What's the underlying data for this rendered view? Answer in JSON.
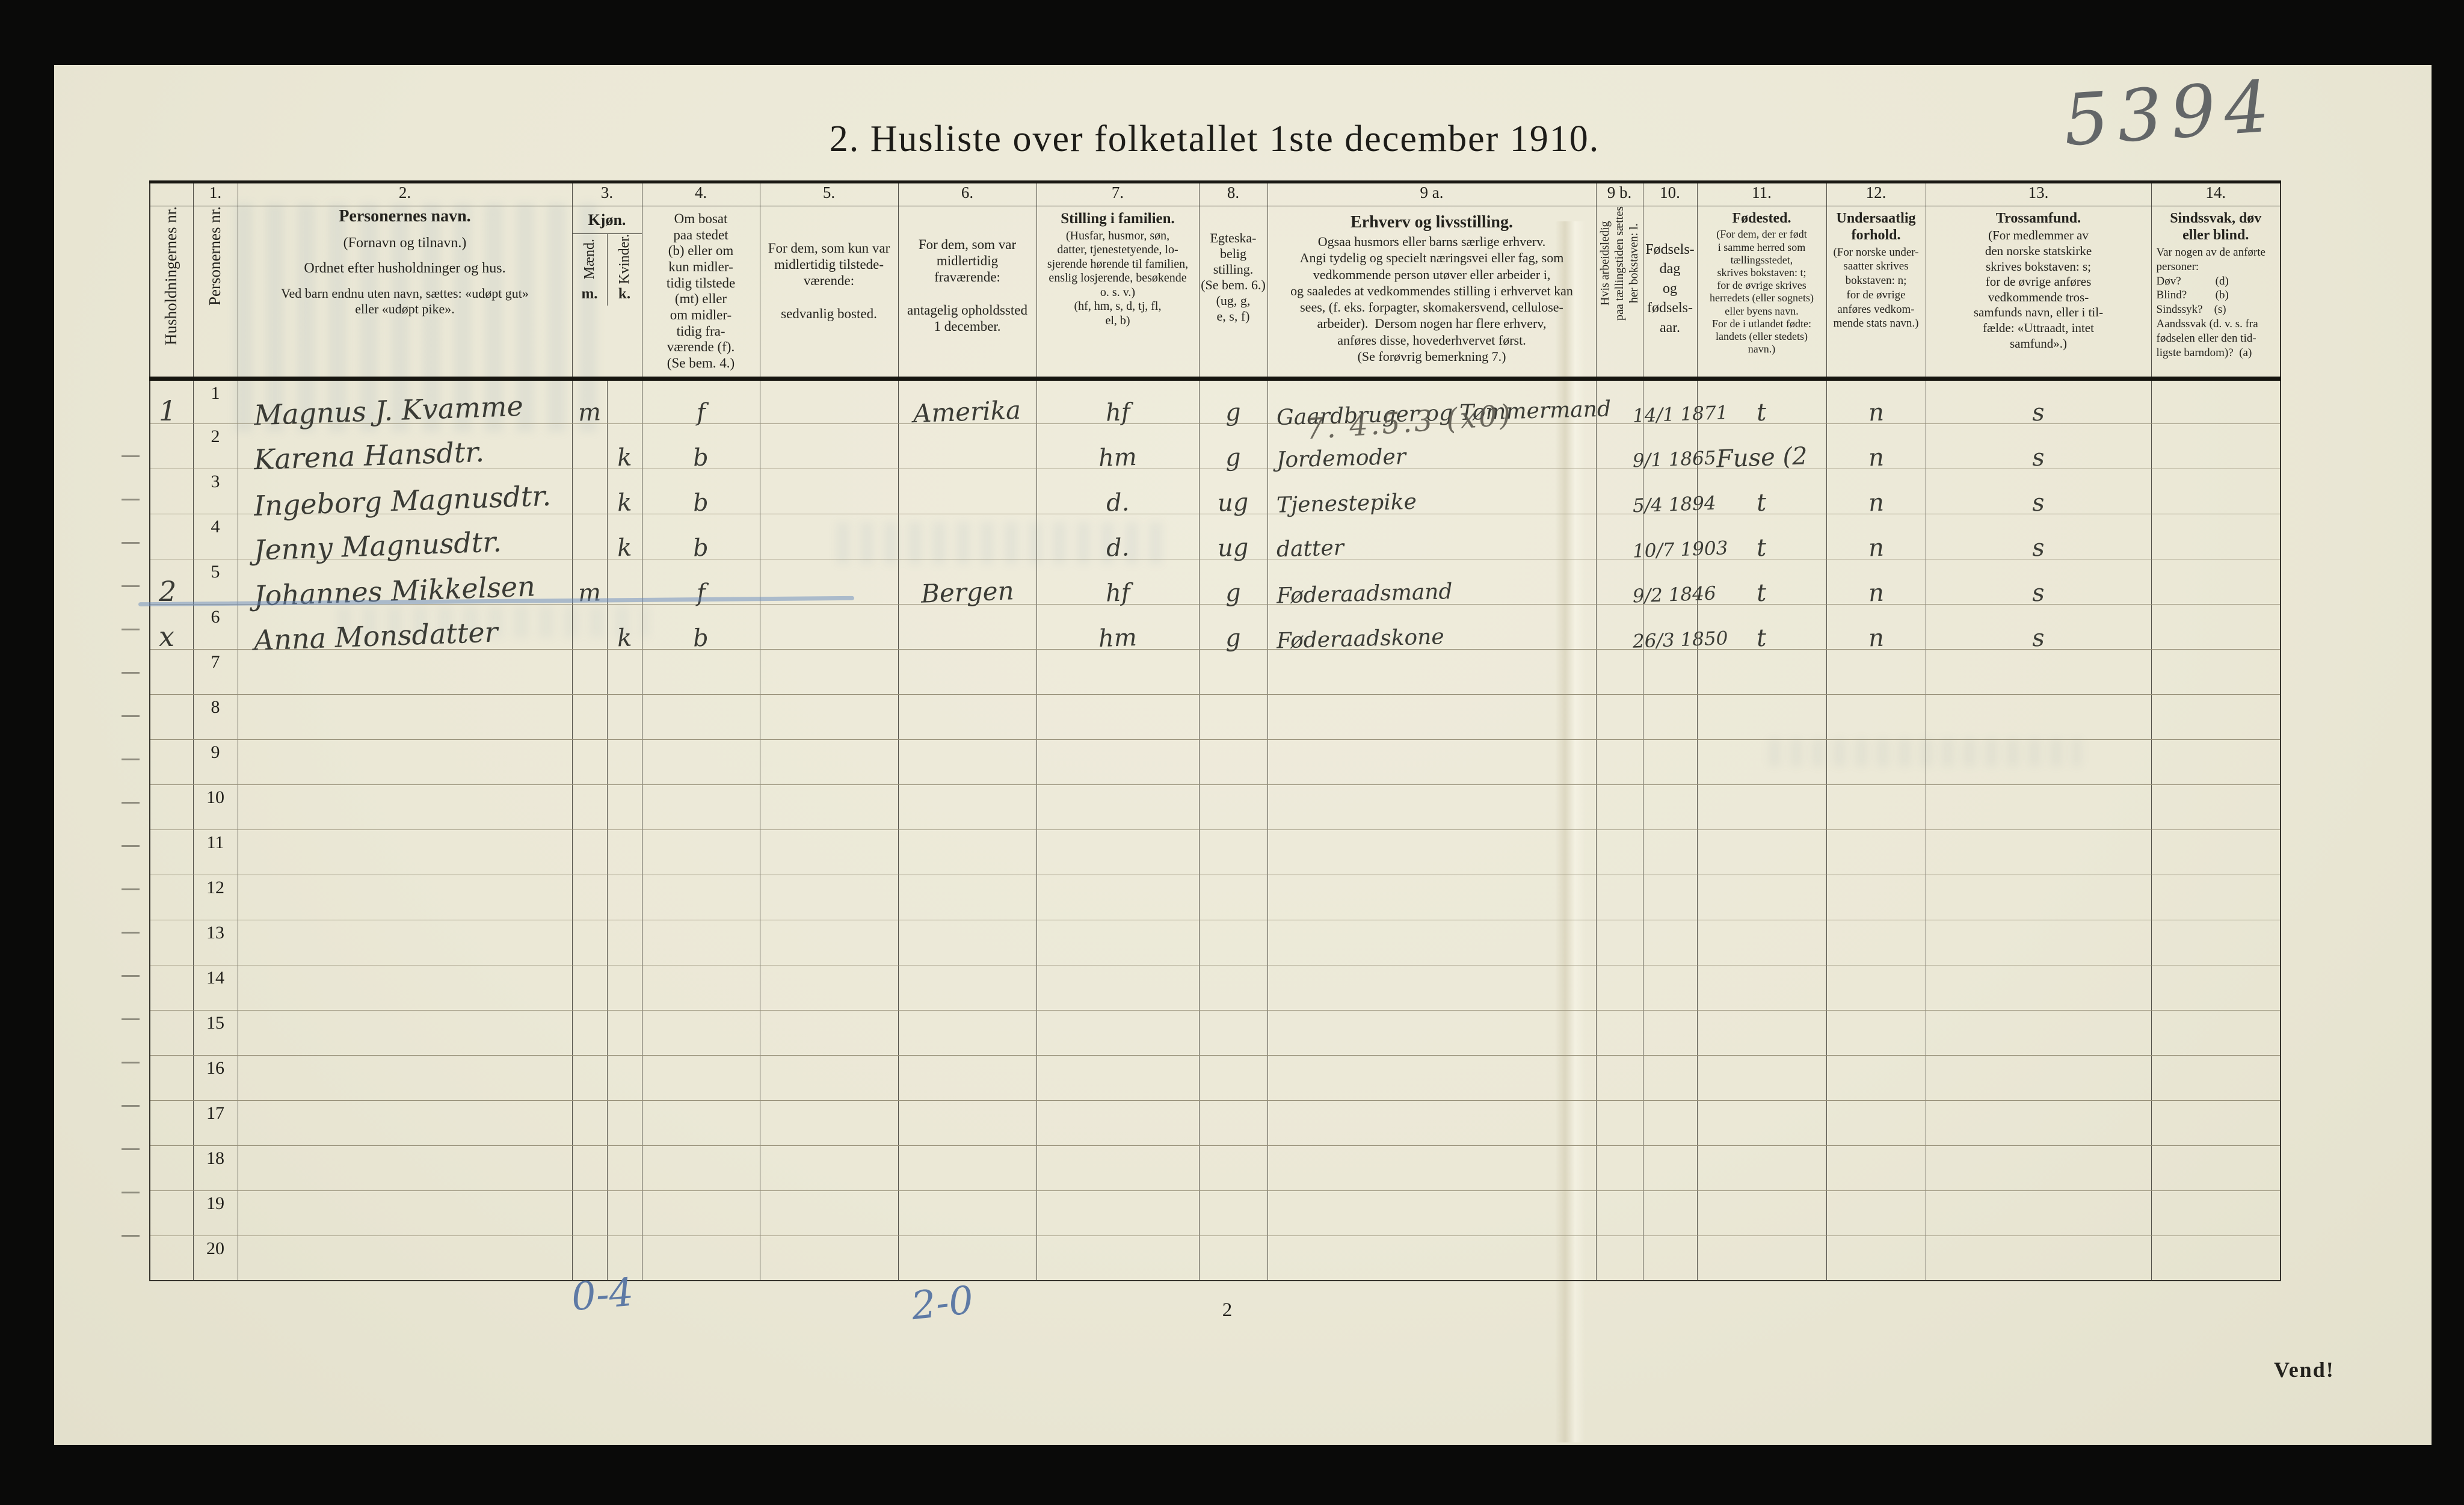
{
  "page": {
    "title": "2. Husliste over folketallet 1ste december 1910.",
    "sheet_kind": "census-house-list"
  },
  "annotations": {
    "serial_number": "5394",
    "pencil_note": "7. 4.5.3 (x0)",
    "total_blue_left": "0-4",
    "total_blue_right": "2-0",
    "page_number": "2",
    "vend_note": "Vend!"
  },
  "table": {
    "numbers": [
      "1.",
      "2.",
      "3.",
      "4.",
      "5.",
      "6.",
      "7.",
      "8.",
      "9 a.",
      "9 b.",
      "10.",
      "11.",
      "12.",
      "13.",
      "14."
    ],
    "headers": {
      "household_nr": "Husholdningernes nr.",
      "person_nr": "Personernes nr.",
      "name_title": "Personernes navn.",
      "name_sub1": "(Fornavn og tilnavn.)",
      "name_sub2": "Ordnet efter husholdninger og hus.",
      "name_sub3": "Ved barn endnu uten navn, sættes: «udøpt gut»\neller «udøpt pike».",
      "kjon": "Kjøn.",
      "maend": "Mænd.",
      "kvinder": "Kvinder.",
      "m_abbr": "m.",
      "k_abbr": "k.",
      "c4": "Om bosat\npaa stedet\n(b) eller om\nkun midler-\ntidig tilstede\n(mt) eller\nom midler-\ntidig fra-\nværende (f).\n(Se bem. 4.)",
      "c5": "For dem, som kun var\nmidlertidig tilstede-\nværende:\n\nsedvanlig bosted.",
      "c6": "For dem, som var\nmidlertidig\nfraværende:\n\nantagelig opholdssted\n1 december.",
      "c7_title": "Stilling i familien.",
      "c7_body": "(Husfar, husmor, søn,\ndatter, tjenestetyende, lo-\nsjerende hørende til familien,\nenslig losjerende, besøkende\no. s. v.)\n(hf, hm, s, d, tj, fl,\nel, b)",
      "c8": "Egteska-\nbelig\nstilling.\n(Se bem. 6.)\n(ug, g,\ne, s, f)",
      "c9a_title": "Erhverv og livsstilling.",
      "c9a_body": "Ogsaa husmors eller barns særlige erhverv.\nAngi tydelig og specielt næringsvei eller fag, som\nvedkommende person utøver eller arbeider i,\nog saaledes at vedkommendes stilling i erhvervet kan\nsees, (f. eks. forpagter, skomakersvend, cellulose-\narbeider).  Dersom nogen har flere erhverv,\nanføres disse, hovederhvervet først.\n(Se forøvrig bemerkning 7.)",
      "c9b": "Hvis arbeidsledig\npaa tællingstiden sættes\nher bokstaven: l.",
      "c10": "Fødsels-\ndag\nog\nfødsels-\naar.",
      "c11_title": "Fødested.",
      "c11_body": "(For dem, der er født\ni samme herred som\ntællingsstedet,\nskrives bokstaven: t;\nfor de øvrige skrives\nherredets (eller sognets)\neller byens navn.\nFor de i utlandet fødte:\nlandets (eller stedets)\nnavn.)",
      "c12_title": "Undersaatlig\nforhold.",
      "c12_body": "(For norske under-\nsaatter skrives\nbokstaven: n;\nfor de øvrige\nanføres vedkom-\nmende stats navn.)",
      "c13_title": "Trossamfund.",
      "c13_body": "(For medlemmer av\nden norske statskirke\nskrives bokstaven: s;\nfor de øvrige anføres\nvedkommende tros-\nsamfunds navn, eller i til-\nfælde: «Uttraadt, intet\nsamfund».)",
      "c14_title": "Sindssvak, døv\neller blind.",
      "c14_body": "Var nogen av de anførte\npersoner:\nDøv?            (d)\nBlind?          (b)\nSindssyk?    (s)\nAandssvak (d. v. s. fra\nfødselen eller den tid-\nligste barndom)?  (a)"
    },
    "rows": [
      {
        "hh": "1",
        "nr": "1",
        "name": "Magnus J. Kvamme",
        "m": "m",
        "b": "f",
        "c6": "Amerika",
        "c7": "hf",
        "c8": "g",
        "c9a": "Gaardbruger og Tømmermand",
        "c10": "14/1 1871",
        "c11": "t",
        "c12": "n",
        "c13": "s"
      },
      {
        "nr": "2",
        "name": "Karena Hansdtr.",
        "k": "k",
        "b": "b",
        "c7": "hm",
        "c8": "g",
        "c9a": "Jordemoder",
        "c10": "9/1 1865",
        "c11": "Fuse (2",
        "c12": "n",
        "c13": "s"
      },
      {
        "nr": "3",
        "name": "Ingeborg Magnusdtr.",
        "k": "k",
        "b": "b",
        "c7": "d.",
        "c8": "ug",
        "c9a": "Tjenestepike",
        "c10": "5/4 1894",
        "c11": "t",
        "c12": "n",
        "c13": "s"
      },
      {
        "nr": "4",
        "name": "Jenny Magnusdtr.",
        "k": "k",
        "b": "b",
        "c7": "d.",
        "c8": "ug",
        "c9a": "datter",
        "c10": "10/7 1903",
        "c11": "t",
        "c12": "n",
        "c13": "s"
      },
      {
        "hh": "2",
        "nr": "5",
        "name": "Johannes Mikkelsen",
        "m": "m",
        "b": "f",
        "c6": "Bergen",
        "c7": "hf",
        "c8": "g",
        "c9a": "Føderaadsmand",
        "c10": "9/2 1846",
        "c11": "t",
        "c12": "n",
        "c13": "s"
      },
      {
        "hh": "x",
        "nr": "6",
        "name": "Anna Monsdatter",
        "k": "k",
        "b": "b",
        "c7": "hm",
        "c8": "g",
        "c9a": "Føderaadskone",
        "c10": "26/3 1850",
        "c11": "t",
        "c12": "n",
        "c13": "s"
      },
      {
        "nr": "7"
      },
      {
        "nr": "8"
      },
      {
        "nr": "9"
      },
      {
        "nr": "10"
      },
      {
        "nr": "11"
      },
      {
        "nr": "12"
      },
      {
        "nr": "13"
      },
      {
        "nr": "14"
      },
      {
        "nr": "15"
      },
      {
        "nr": "16"
      },
      {
        "nr": "17"
      },
      {
        "nr": "18"
      },
      {
        "nr": "19"
      },
      {
        "nr": "20"
      }
    ]
  }
}
